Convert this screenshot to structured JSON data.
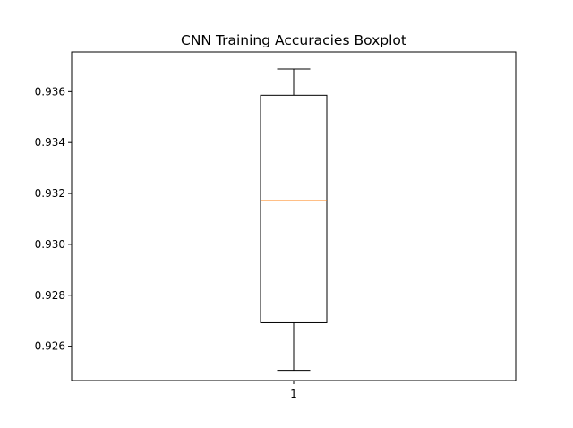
{
  "chart_data": {
    "type": "boxplot",
    "title": "CNN Training Accuracies Boxplot",
    "xlabel": "",
    "ylabel": "",
    "categories": [
      "1"
    ],
    "boxes": [
      {
        "category": "1",
        "whisker_low": 0.92505,
        "q1": 0.92692,
        "median": 0.93172,
        "q3": 0.93586,
        "whisker_high": 0.93689
      }
    ],
    "ylim": [
      0.92465,
      0.93756
    ],
    "yticks": [
      0.926,
      0.928,
      0.93,
      0.932,
      0.934,
      0.936
    ],
    "ytick_labels": [
      "0.926",
      "0.928",
      "0.930",
      "0.932",
      "0.934",
      "0.936"
    ],
    "grid": false,
    "colors": {
      "box": "#000000",
      "median": "#ff7f0e",
      "axes": "#000000"
    }
  }
}
